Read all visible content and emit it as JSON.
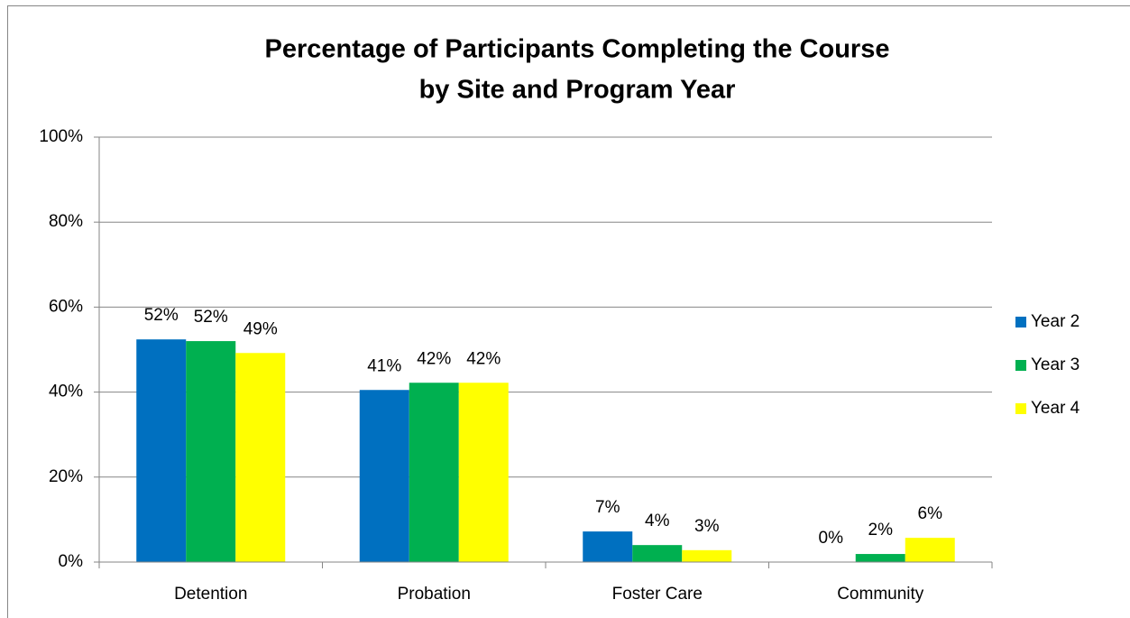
{
  "chart_data": {
    "type": "bar",
    "title": [
      "Percentage of Participants Completing the Course",
      "by Site and Program Year"
    ],
    "categories": [
      "Detention",
      "Probation",
      "Foster Care",
      "Community"
    ],
    "series": [
      {
        "name": "Year 2",
        "color": "#0070c0",
        "values": [
          52.4,
          40.5,
          7.2,
          0
        ],
        "value_labels": [
          "52%",
          "41%",
          "7%",
          "0%"
        ]
      },
      {
        "name": "Year 3",
        "color": "#00b050",
        "values": [
          52,
          42.2,
          4,
          1.9
        ],
        "value_labels": [
          "52%",
          "42%",
          "4%",
          "2%"
        ]
      },
      {
        "name": "Year 4",
        "color": "#ffff00",
        "values": [
          49.2,
          42.2,
          2.8,
          5.7
        ],
        "value_labels": [
          "49%",
          "42%",
          "3%",
          "6%"
        ]
      }
    ],
    "ylim": [
      0,
      100
    ],
    "yticks": [
      {
        "value": 0,
        "label": "0%"
      },
      {
        "value": 20,
        "label": "20%"
      },
      {
        "value": 40,
        "label": "40%"
      },
      {
        "value": 60,
        "label": "60%"
      },
      {
        "value": 80,
        "label": "80%"
      },
      {
        "value": 100,
        "label": "100%"
      }
    ],
    "grid": true,
    "legend": "right"
  }
}
